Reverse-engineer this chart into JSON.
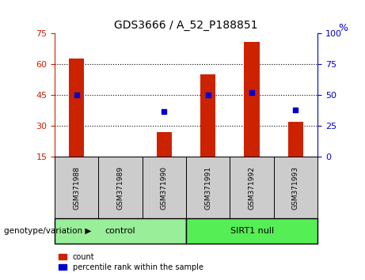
{
  "title": "GDS3666 / A_52_P188851",
  "samples": [
    "GSM371988",
    "GSM371989",
    "GSM371990",
    "GSM371991",
    "GSM371992",
    "GSM371993"
  ],
  "counts": [
    63,
    15,
    27,
    55,
    71,
    32
  ],
  "percentiles": [
    50,
    null,
    37,
    50,
    52,
    38
  ],
  "ylim_left": [
    15,
    75
  ],
  "ylim_right": [
    0,
    100
  ],
  "yticks_left": [
    15,
    30,
    45,
    60,
    75
  ],
  "yticks_right": [
    0,
    25,
    50,
    75,
    100
  ],
  "bar_color": "#cc2200",
  "dot_color": "#0000cc",
  "bg_label": "#cccccc",
  "bg_control": "#99ee99",
  "bg_sirt1": "#55ee55",
  "control_label": "control",
  "sirt1_label": "SIRT1 null",
  "genotype_label": "genotype/variation",
  "legend_count": "count",
  "legend_percentile": "percentile rank within the sample",
  "right_axis_label": "%",
  "bar_bottom": 15,
  "figsize": [
    4.61,
    3.54
  ],
  "dpi": 100
}
